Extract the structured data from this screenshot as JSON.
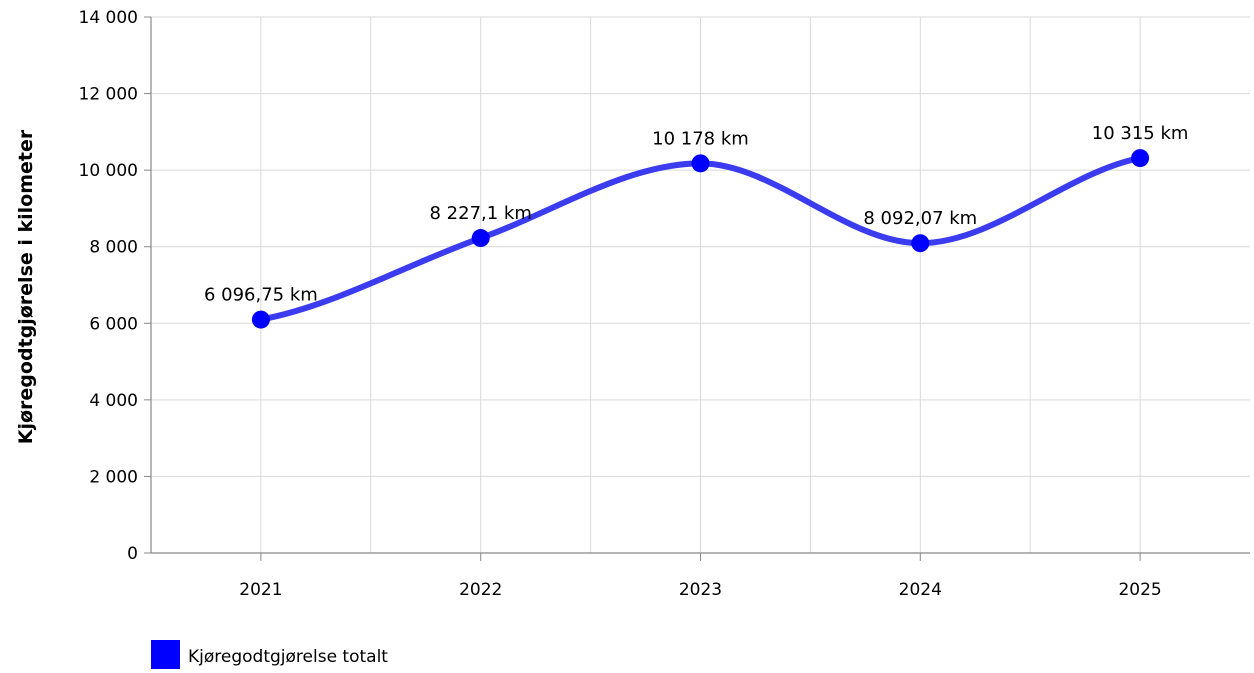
{
  "chart_data": {
    "type": "line",
    "smooth": true,
    "categories": [
      "2021",
      "2022",
      "2023",
      "2024",
      "2025"
    ],
    "series": [
      {
        "name": "Kjøregodtgjørelse totalt",
        "values": [
          6096.75,
          8227.1,
          10178,
          8092.07,
          10315
        ],
        "data_labels": [
          "6 096,75 km",
          "8 227,1 km",
          "10 178 km",
          "8 092,07 km",
          "10 315 km"
        ],
        "color": "#0000ff",
        "line_color": "#3b3bf0"
      }
    ],
    "title": "",
    "xlabel": "",
    "ylabel": "Kjøregodtgjørelse i kilometer",
    "ylim": [
      0,
      14000
    ],
    "yticks": [
      0,
      2000,
      4000,
      6000,
      8000,
      10000,
      12000,
      14000
    ],
    "ytick_labels": [
      "0",
      "2 000",
      "4 000",
      "6 000",
      "8 000",
      "10 000",
      "12 000",
      "14 000"
    ],
    "grid": true,
    "legend_position": "bottom-left"
  },
  "colors": {
    "grid": "#d9d9d9",
    "axis": "#888888",
    "marker": "#0000ff",
    "line": "#3b3bf0"
  }
}
